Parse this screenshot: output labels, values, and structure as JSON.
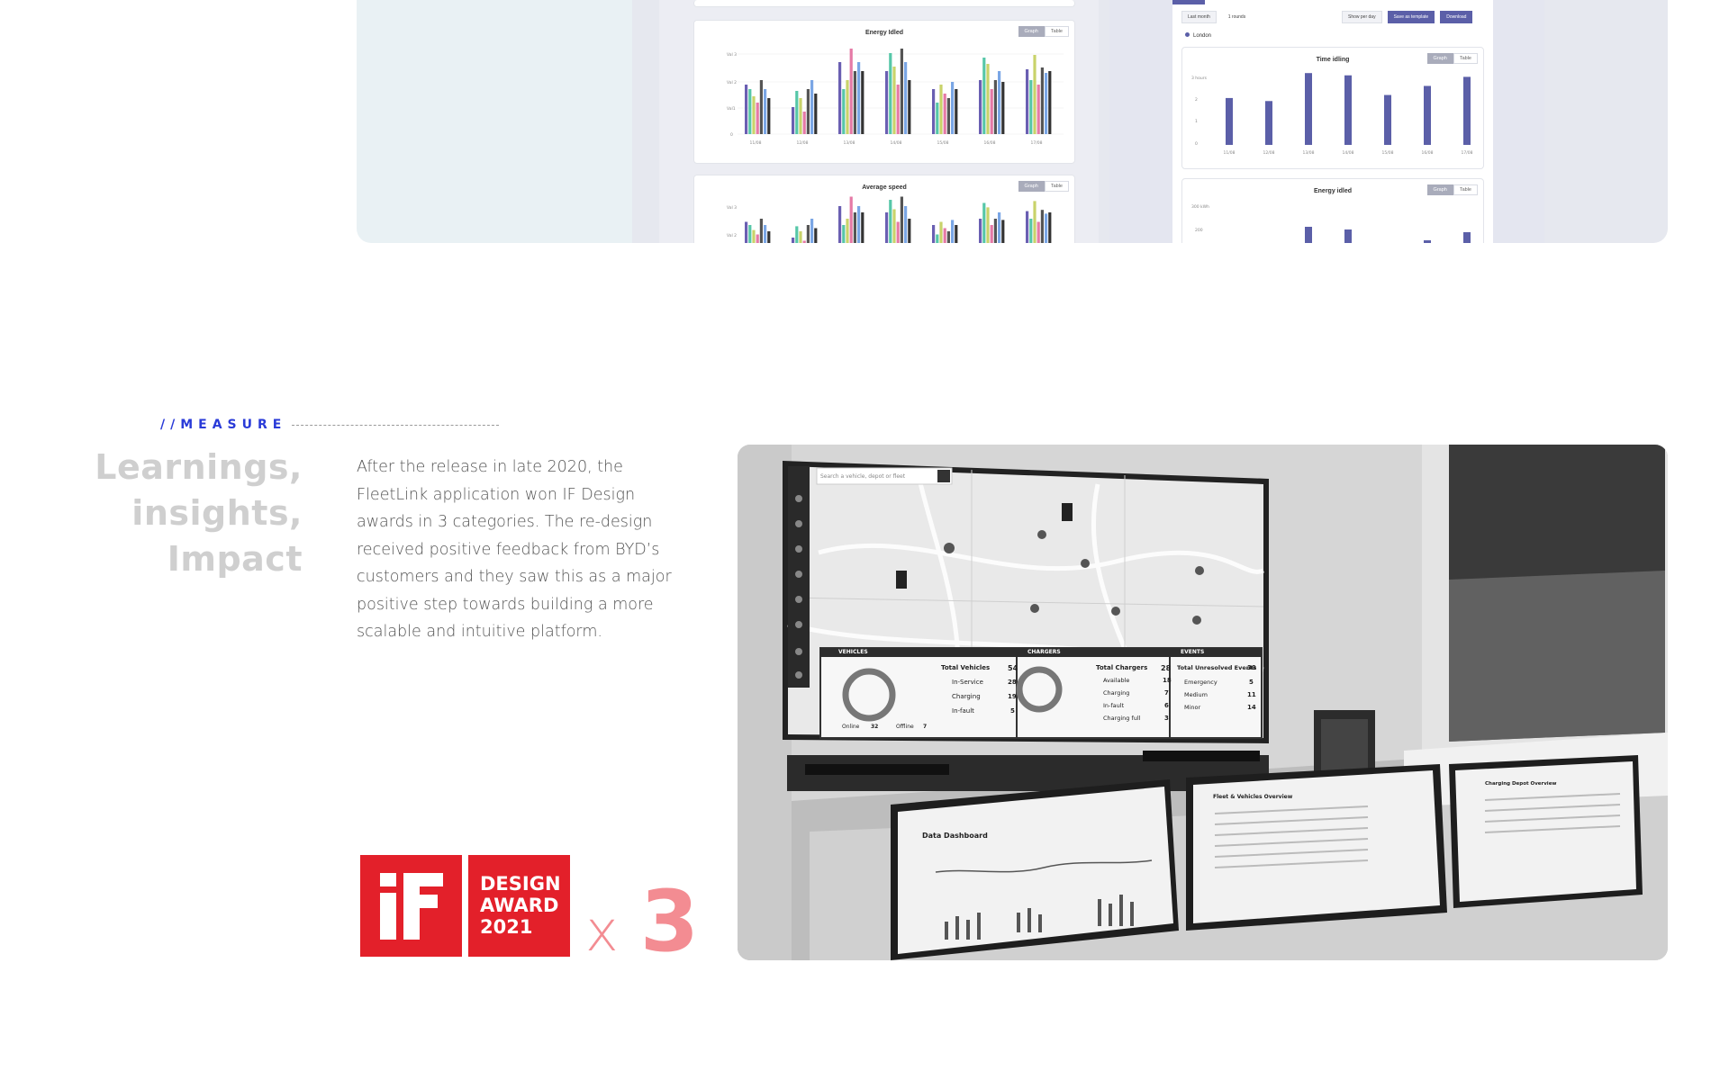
{
  "top_panel": {
    "left_charts": [
      {
        "title": "Energy Idled",
        "toggle": [
          "Graph",
          "Table"
        ],
        "y_ticks": [
          "Val 3",
          "Val 2",
          "Val1",
          "0"
        ],
        "x_ticks": [
          "11/08",
          "12/08",
          "13/08",
          "14/08",
          "15/08",
          "16/08",
          "17/08"
        ]
      },
      {
        "title": "Average speed",
        "toggle": [
          "Graph",
          "Table"
        ],
        "y_ticks": [
          "Val 3",
          "Val 2"
        ]
      }
    ],
    "right_toolbar": {
      "period": "Last month",
      "count": "1 rounds",
      "interval": "Show per day",
      "save": "Save as template",
      "download": "Download"
    },
    "right_legend": "London",
    "right_charts": [
      {
        "title": "Time idling",
        "toggle": [
          "Graph",
          "Table"
        ],
        "y_ticks": [
          "3 hours",
          "2",
          "1",
          "0"
        ],
        "x_ticks": [
          "11/08",
          "12/08",
          "13/08",
          "14/08",
          "15/08",
          "16/08",
          "17/08"
        ]
      },
      {
        "title": "Energy idled",
        "toggle": [
          "Graph",
          "Table"
        ],
        "y_ticks": [
          "300 kWh",
          "200"
        ]
      }
    ]
  },
  "measure": {
    "eyebrow": "//MEASURE",
    "heading": [
      "Learnings,",
      "insights,",
      "Impact"
    ],
    "body": "After the release in late 2020, the FleetLink application won IF Design awards in 3 categories. The re-design received positive feedback from BYD’s customers and they saw this as a major positive step towards building a more scalable and intuitive platform.",
    "award": {
      "lines": [
        "DESIGN",
        "AWARD",
        "2021"
      ],
      "multiplier_x": "x",
      "multiplier_n": "3"
    }
  },
  "photo": {
    "search_placeholder": "Search a vehicle, depot or fleet",
    "vehicles": {
      "header": "VEHICLES",
      "title": "Total Vehicles",
      "total": "54",
      "rows": [
        {
          "label": "In-Service",
          "value": "28"
        },
        {
          "label": "Charging",
          "value": "19"
        },
        {
          "label": "In-fault",
          "value": "5"
        }
      ],
      "online_label": "Online",
      "online": "32",
      "offline_label": "Offline",
      "offline": "7"
    },
    "chargers": {
      "header": "CHARGERS",
      "title": "Total Chargers",
      "total": "28",
      "rows": [
        {
          "label": "Available",
          "value": "18"
        },
        {
          "label": "Charging",
          "value": "7"
        },
        {
          "label": "In-fault",
          "value": "6"
        },
        {
          "label": "Charging full",
          "value": "3"
        }
      ]
    },
    "events": {
      "header": "EVENTS",
      "title": "Total Unresolved Events",
      "total": "30",
      "rows": [
        {
          "label": "Emergency",
          "value": "5"
        },
        {
          "label": "Medium",
          "value": "11"
        },
        {
          "label": "Minor",
          "value": "14"
        }
      ]
    },
    "monitors": [
      "Data Dashboard",
      "Fleet & Vehicles Overview",
      "Charging Depot Overview"
    ]
  }
}
